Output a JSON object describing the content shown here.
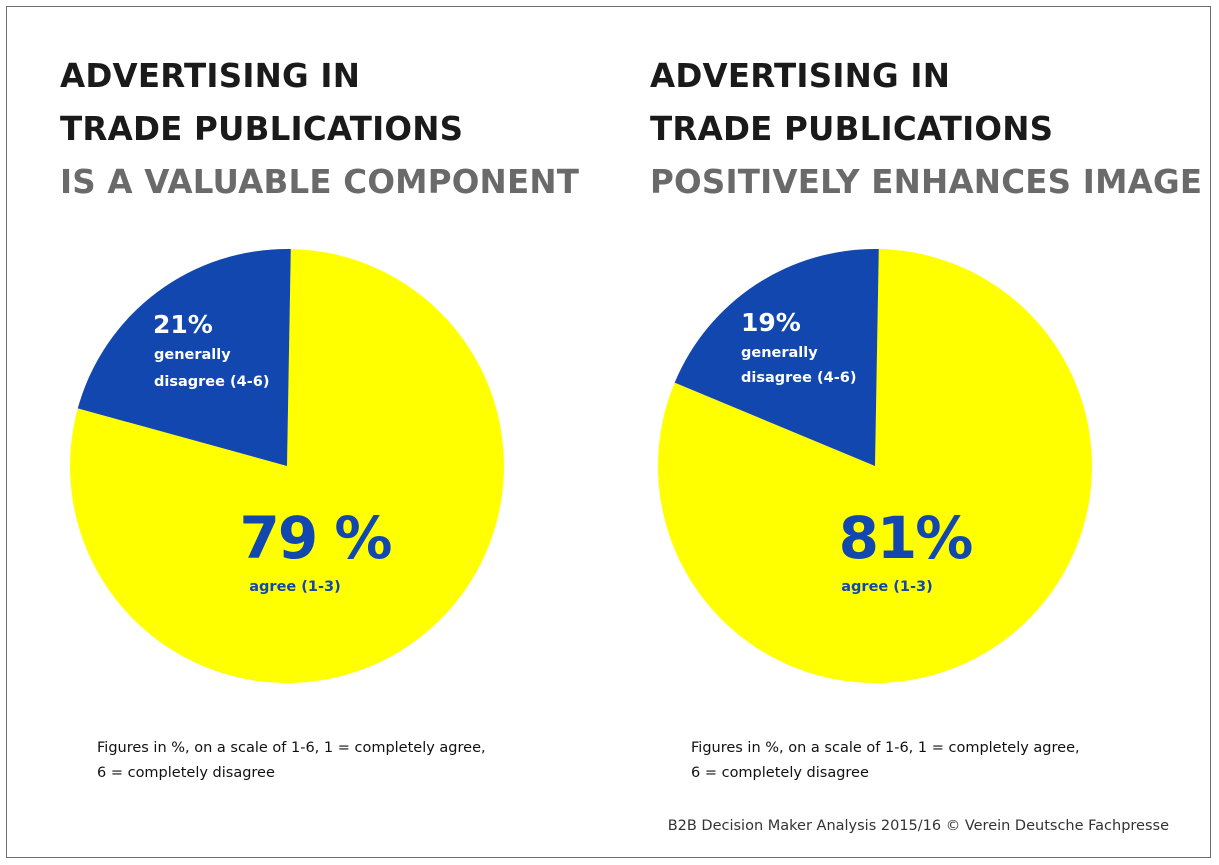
{
  "colors": {
    "agree": "#ffff00",
    "disagree": "#1247b0",
    "label_on_blue": "#ffffff",
    "label_on_yellow": "#1247b0"
  },
  "panels": [
    {
      "title_line1": "ADVERTISING IN",
      "title_line2": "TRADE PUBLICATIONS",
      "subtitle": "IS A VALUABLE COMPONENT",
      "disagree_pct": "21%",
      "disagree_text1": "generally",
      "disagree_text2": "disagree (4-6)",
      "agree_pct": "79 %",
      "agree_text": "agree (1-3)",
      "note_line1": "Figures in %, on a scale of 1-6, 1 = completely agree,",
      "note_line2": "6 = completely disagree"
    },
    {
      "title_line1": "ADVERTISING IN",
      "title_line2": "TRADE PUBLICATIONS",
      "subtitle": "POSITIVELY ENHANCES IMAGE",
      "disagree_pct": "19%",
      "disagree_text1": "generally",
      "disagree_text2": "disagree (4-6)",
      "agree_pct": "81%",
      "agree_text": "agree (1-3)",
      "note_line1": "Figures in %, on a scale of 1-6, 1 = completely agree,",
      "note_line2": "6 = completely disagree"
    }
  ],
  "source": "B2B Decision Maker Analysis 2015/16 © Verein Deutsche Fachpresse",
  "chart_data": [
    {
      "type": "pie",
      "title": "ADVERTISING IN TRADE PUBLICATIONS",
      "subtitle": "IS A VALUABLE COMPONENT",
      "categories": [
        "agree (1-3)",
        "generally disagree (4-6)"
      ],
      "values": [
        79,
        21
      ],
      "colors": [
        "#ffff00",
        "#1247b0"
      ]
    },
    {
      "type": "pie",
      "title": "ADVERTISING IN TRADE PUBLICATIONS",
      "subtitle": "POSITIVELY ENHANCES IMAGE",
      "categories": [
        "agree (1-3)",
        "generally disagree (4-6)"
      ],
      "values": [
        81,
        19
      ],
      "colors": [
        "#ffff00",
        "#1247b0"
      ]
    }
  ]
}
